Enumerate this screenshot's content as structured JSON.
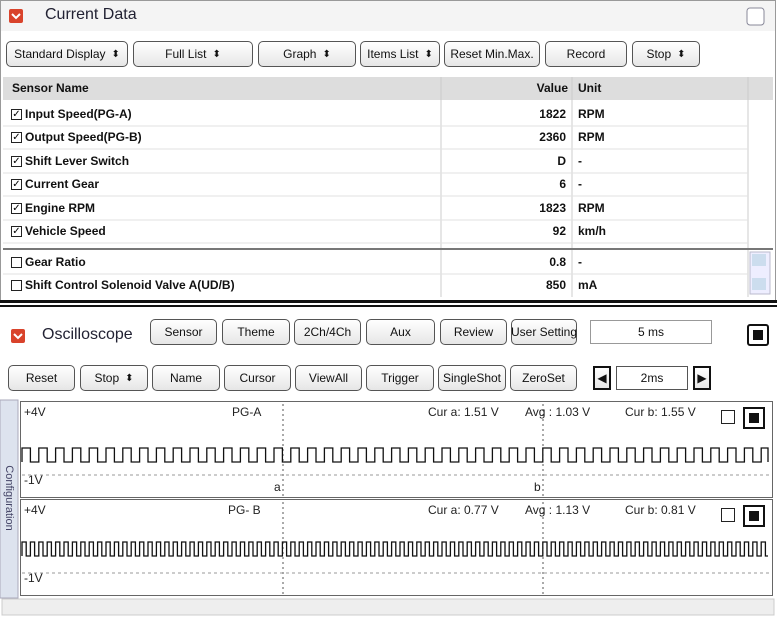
{
  "current_data": {
    "title": "Current Data",
    "toolbar": [
      {
        "label": "Standard Display",
        "dropdown": true
      },
      {
        "label": "Full List",
        "dropdown": true
      },
      {
        "label": "Graph",
        "dropdown": true
      },
      {
        "label": "Items List",
        "dropdown": true
      },
      {
        "label": "Reset Min.Max.",
        "dropdown": false
      },
      {
        "label": "Record",
        "dropdown": false
      },
      {
        "label": "Stop",
        "dropdown": true
      }
    ],
    "columns": [
      "Sensor Name",
      "Value",
      "Unit"
    ],
    "rows": [
      {
        "checked": true,
        "name": "Input Speed(PG-A)",
        "value": 1822,
        "unit": "RPM"
      },
      {
        "checked": true,
        "name": "Output Speed(PG-B)",
        "value": 2360,
        "unit": "RPM"
      },
      {
        "checked": true,
        "name": "Shift Lever Switch",
        "value": "D",
        "unit": "-"
      },
      {
        "checked": true,
        "name": "Current Gear",
        "value": 6,
        "unit": "-"
      },
      {
        "checked": true,
        "name": "Engine RPM",
        "value": 1823,
        "unit": "RPM"
      },
      {
        "checked": true,
        "name": "Vehicle Speed",
        "value": 92,
        "unit": "km/h"
      },
      {
        "checked": false,
        "name": "Gear Ratio",
        "value": 0.8,
        "unit": "-"
      },
      {
        "checked": false,
        "name": "Shift Control Solenoid Valve A(UD/B)",
        "value": 850,
        "unit": "mA"
      }
    ]
  },
  "oscilloscope": {
    "title": "Oscilloscope",
    "buttons": [
      {
        "label": "Sensor",
        "dropdown": false
      },
      {
        "label": "Theme",
        "dropdown": false
      },
      {
        "label": "2Ch/4Ch",
        "dropdown": false
      },
      {
        "label": "Aux",
        "dropdown": false
      },
      {
        "label": "Review",
        "dropdown": false
      },
      {
        "label": "User Setting",
        "dropdown": false
      }
    ],
    "time_div": "5 ms",
    "controls": [
      {
        "label": "Reset",
        "dropdown": false
      },
      {
        "label": "Stop",
        "dropdown": true
      },
      {
        "label": "Name",
        "dropdown": false
      },
      {
        "label": "Cursor",
        "dropdown": false
      },
      {
        "label": "ViewAll",
        "dropdown": false
      },
      {
        "label": "Trigger",
        "dropdown": false
      },
      {
        "label": "SingleShot",
        "dropdown": false
      },
      {
        "label": "ZeroSet",
        "dropdown": false
      }
    ],
    "step": "2ms",
    "side_tab": "Configuration",
    "channels": [
      {
        "max": "+4V",
        "min": "-1V",
        "name": "PG-A",
        "cursor_a": "Cur a: 1.51 V",
        "average": "Avg : 1.03 V",
        "cursor_b": "Cur b: 1.55 V",
        "marker_a": "a",
        "marker_b": "b"
      },
      {
        "max": "+4V",
        "min": "-1V",
        "name": "PG- B",
        "cursor_a": "Cur a: 0.77 V",
        "average": "Avg : 1.13 V",
        "cursor_b": "Cur b: 0.81 V"
      }
    ]
  }
}
